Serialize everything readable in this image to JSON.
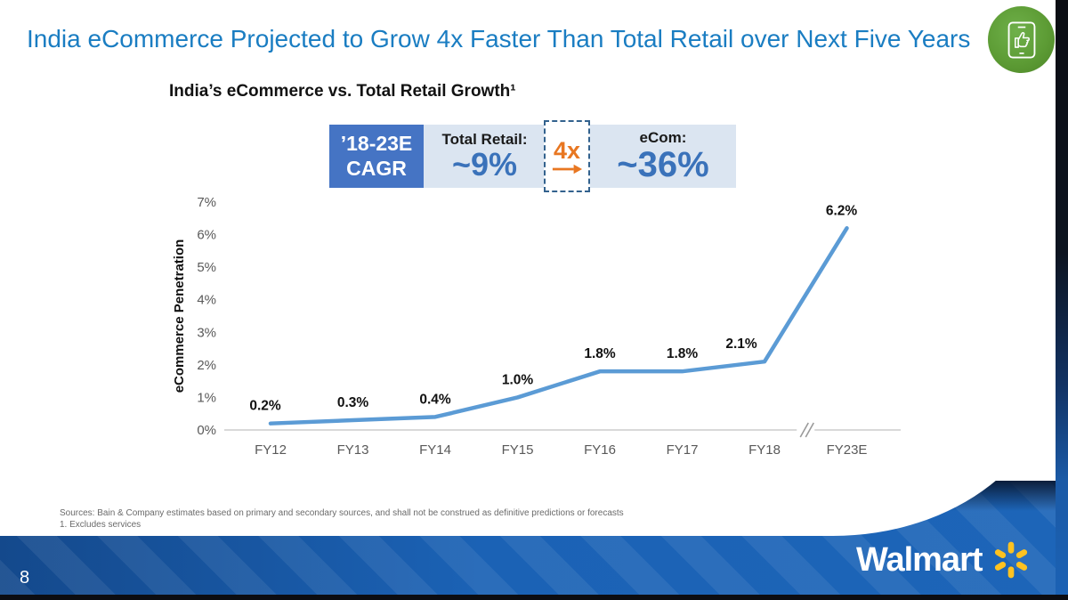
{
  "slide": {
    "title": "India eCommerce Projected to Grow 4x Faster Than Total Retail over Next Five Years",
    "page_number": "8",
    "footnote_sources": "Sources: Bain & Company estimates based on primary and secondary sources, and shall not be construed as definitive predictions or forecasts",
    "footnote_1": "1. Excludes services",
    "logo_text": "Walmart",
    "icons": {
      "corner_badge": "mobile-phone-thumbs-up-icon",
      "logo_spark": "walmart-spark-icon"
    }
  },
  "cagr_callout": {
    "period_line1": "’18-23E",
    "period_line2": "CAGR",
    "total_retail_label": "Total Retail:",
    "total_retail_value": "~9%",
    "multiplier": "4x",
    "ecom_label": "eCom:",
    "ecom_value": "~36%"
  },
  "chart_data": {
    "type": "line",
    "title": "India’s eCommerce vs. Total Retail Growth¹",
    "ylabel": "eCommerce Penetration",
    "categories": [
      "FY12",
      "FY13",
      "FY14",
      "FY15",
      "FY16",
      "FY17",
      "FY18",
      "FY23E"
    ],
    "values": [
      0.2,
      0.3,
      0.4,
      1.0,
      1.8,
      1.8,
      2.1,
      6.2
    ],
    "point_labels": [
      "0.2%",
      "0.3%",
      "0.4%",
      "1.0%",
      "1.8%",
      "1.8%",
      "2.1%",
      "6.2%"
    ],
    "y_ticks": [
      "0%",
      "1%",
      "2%",
      "3%",
      "4%",
      "5%",
      "6%",
      "7%"
    ],
    "ylim": [
      0,
      7
    ],
    "grid": false,
    "legend": "none",
    "axis_break_before_category": "FY23E",
    "line_color": "#5b9bd5",
    "cagr_total_retail_2018_2023e": "~9%",
    "cagr_ecom_2018_2023e": "~36%"
  },
  "colors": {
    "title_blue": "#1a7dc2",
    "cagr_box_blue": "#4574c4",
    "cagr_band_light_blue": "#dbe5f1",
    "value_blue": "#3a72ba",
    "multiplier_orange": "#e87722",
    "line_blue": "#5b9bd5",
    "band_blue": "#1b62b5",
    "badge_green": "#5d9c35",
    "walmart_yellow": "#ffc220"
  }
}
